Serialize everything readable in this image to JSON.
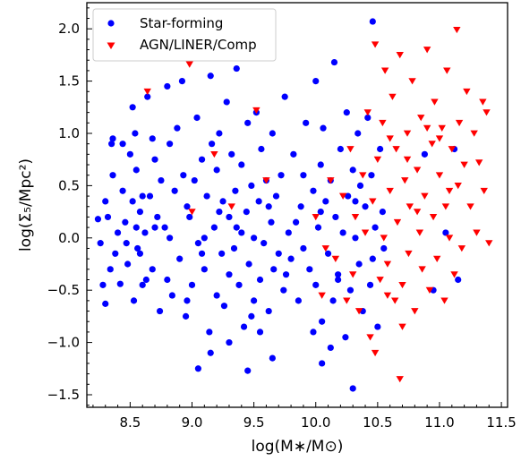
{
  "chart_data": {
    "type": "scatter",
    "xlabel": "log(M∗/M⊙)",
    "ylabel": "log(Σ₅/Mpc²)",
    "xlim": [
      8.15,
      11.55
    ],
    "ylim": [
      -1.62,
      2.25
    ],
    "xticks": [
      8.5,
      9.0,
      9.5,
      10.0,
      10.5,
      11.0,
      11.5
    ],
    "xtick_labels": [
      "8.5",
      "9.0",
      "9.5",
      "10.0",
      "10.5",
      "11.0",
      "11.5"
    ],
    "yticks": [
      -1.5,
      -1.0,
      -0.5,
      0.0,
      0.5,
      1.0,
      1.5,
      2.0
    ],
    "ytick_labels": [
      "−1.5",
      "−1.0",
      "−0.5",
      "0.0",
      "0.5",
      "1.0",
      "1.5",
      "2.0"
    ],
    "grid": false,
    "legend_position": "top-left",
    "colors": {
      "star_forming": "#0000ff",
      "agn": "#ff0000"
    },
    "series": [
      {
        "name": "Star-forming",
        "marker": "circle",
        "points": [
          [
            8.24,
            0.18
          ],
          [
            8.26,
            -0.05
          ],
          [
            8.28,
            -0.45
          ],
          [
            8.3,
            0.35
          ],
          [
            8.32,
            0.2
          ],
          [
            8.3,
            -0.63
          ],
          [
            8.34,
            -0.3
          ],
          [
            8.35,
            0.9
          ],
          [
            8.36,
            0.6
          ],
          [
            8.38,
            -0.15
          ],
          [
            8.4,
            0.05
          ],
          [
            8.42,
            -0.44
          ],
          [
            8.44,
            0.45
          ],
          [
            8.46,
            0.15
          ],
          [
            8.48,
            -0.25
          ],
          [
            8.5,
            0.8
          ],
          [
            8.52,
            0.35
          ],
          [
            8.53,
            -0.6
          ],
          [
            8.55,
            0.65
          ],
          [
            8.56,
            -0.1
          ],
          [
            8.58,
            0.25
          ],
          [
            8.6,
            -0.45
          ],
          [
            8.62,
            0.05
          ],
          [
            8.64,
            1.35
          ],
          [
            8.66,
            0.4
          ],
          [
            8.68,
            -0.3
          ],
          [
            8.7,
            0.75
          ],
          [
            8.72,
            0.2
          ],
          [
            8.74,
            -0.7
          ],
          [
            8.75,
            0.55
          ],
          [
            8.36,
            0.95
          ],
          [
            8.44,
            0.9
          ],
          [
            8.52,
            1.25
          ],
          [
            8.54,
            1.0
          ],
          [
            8.6,
            0.4
          ],
          [
            8.68,
            0.95
          ],
          [
            8.55,
            0.1
          ],
          [
            8.47,
            -0.05
          ],
          [
            8.63,
            -0.4
          ],
          [
            8.8,
            -0.4
          ],
          [
            8.78,
            0.1
          ],
          [
            8.8,
            1.45
          ],
          [
            8.82,
            0.0
          ],
          [
            8.84,
            -0.55
          ],
          [
            8.86,
            0.45
          ],
          [
            8.88,
            1.05
          ],
          [
            8.9,
            -0.2
          ],
          [
            8.92,
            1.5
          ],
          [
            8.93,
            0.6
          ],
          [
            8.95,
            -0.75
          ],
          [
            8.96,
            0.3
          ],
          [
            8.98,
            0.2
          ],
          [
            9.0,
            -0.45
          ],
          [
            9.02,
            0.55
          ],
          [
            9.04,
            1.15
          ],
          [
            9.05,
            -0.05
          ],
          [
            9.06,
            1.8
          ],
          [
            9.08,
            0.75
          ],
          [
            9.1,
            -0.3
          ],
          [
            9.1,
            0.0
          ],
          [
            9.12,
            0.4
          ],
          [
            9.14,
            -0.9
          ],
          [
            9.15,
            1.55
          ],
          [
            9.16,
            0.9
          ],
          [
            9.18,
            0.1
          ],
          [
            9.2,
            -0.55
          ],
          [
            9.2,
            0.65
          ],
          [
            9.22,
            1.0
          ],
          [
            9.24,
            -0.15
          ],
          [
            9.25,
            0.35
          ],
          [
            9.26,
            -0.65
          ],
          [
            9.28,
            1.3
          ],
          [
            9.3,
            0.2
          ],
          [
            9.3,
            -0.35
          ],
          [
            9.32,
            0.8
          ],
          [
            9.34,
            -0.1
          ],
          [
            9.35,
            0.45
          ],
          [
            9.36,
            1.62
          ],
          [
            9.38,
            -0.45
          ],
          [
            9.4,
            0.05
          ],
          [
            9.4,
            0.7
          ],
          [
            9.42,
            -0.85
          ],
          [
            9.44,
            0.25
          ],
          [
            9.45,
            1.1
          ],
          [
            9.46,
            -0.25
          ],
          [
            9.48,
            0.5
          ],
          [
            9.5,
            -0.6
          ],
          [
            9.5,
            0.0
          ],
          [
            9.52,
            1.2
          ],
          [
            9.54,
            0.35
          ],
          [
            9.55,
            -0.4
          ],
          [
            9.56,
            0.85
          ],
          [
            9.58,
            -0.05
          ],
          [
            9.6,
            0.55
          ],
          [
            9.62,
            -0.7
          ],
          [
            9.64,
            0.15
          ],
          [
            9.65,
            1.0
          ],
          [
            9.66,
            -0.3
          ],
          [
            9.68,
            0.4
          ],
          [
            9.7,
            -0.15
          ],
          [
            9.72,
            0.6
          ],
          [
            9.74,
            -0.5
          ],
          [
            9.75,
            1.35
          ],
          [
            9.78,
            0.05
          ],
          [
            9.8,
            -0.2
          ],
          [
            9.82,
            0.8
          ],
          [
            9.84,
            0.15
          ],
          [
            9.86,
            -0.6
          ],
          [
            9.88,
            0.3
          ],
          [
            9.9,
            -0.1
          ],
          [
            9.92,
            1.1
          ],
          [
            9.95,
            -0.3
          ],
          [
            9.98,
            0.45
          ],
          [
            10.0,
            1.5
          ],
          [
            10.0,
            -0.45
          ],
          [
            10.02,
            0.1
          ],
          [
            10.04,
            0.7
          ],
          [
            10.05,
            -0.8
          ],
          [
            10.06,
            1.05
          ],
          [
            10.08,
            0.35
          ],
          [
            10.1,
            -0.15
          ],
          [
            10.12,
            0.55
          ],
          [
            10.14,
            -0.6
          ],
          [
            10.15,
            1.68
          ],
          [
            10.16,
            0.2
          ],
          [
            10.18,
            -0.35
          ],
          [
            10.2,
            0.85
          ],
          [
            10.22,
            0.05
          ],
          [
            10.24,
            -0.95
          ],
          [
            10.25,
            1.2
          ],
          [
            10.26,
            0.4
          ],
          [
            10.28,
            -0.5
          ],
          [
            10.3,
            0.65
          ],
          [
            10.3,
            -1.44
          ],
          [
            10.32,
            0.0
          ],
          [
            10.34,
            1.0
          ],
          [
            10.35,
            -0.25
          ],
          [
            10.36,
            0.5
          ],
          [
            10.38,
            -0.7
          ],
          [
            10.4,
            0.3
          ],
          [
            10.42,
            1.15
          ],
          [
            10.44,
            -0.45
          ],
          [
            10.45,
            0.6
          ],
          [
            10.46,
            2.07
          ],
          [
            10.48,
            0.1
          ],
          [
            10.5,
            -0.85
          ],
          [
            10.52,
            0.85
          ],
          [
            10.54,
            0.25
          ],
          [
            10.55,
            -0.1
          ],
          [
            9.05,
            -1.25
          ],
          [
            9.15,
            -1.1
          ],
          [
            9.3,
            -1.0
          ],
          [
            9.45,
            -1.27
          ],
          [
            9.55,
            -0.9
          ],
          [
            9.65,
            -1.15
          ],
          [
            9.98,
            -0.9
          ],
          [
            10.05,
            -1.2
          ],
          [
            10.12,
            -1.05
          ],
          [
            8.58,
            -0.15
          ],
          [
            8.7,
            0.1
          ],
          [
            8.82,
            0.9
          ],
          [
            8.96,
            -0.6
          ],
          [
            9.08,
            -0.15
          ],
          [
            9.22,
            0.25
          ],
          [
            9.36,
            0.1
          ],
          [
            9.48,
            -0.75
          ],
          [
            9.62,
            0.3
          ],
          [
            9.76,
            -0.35
          ],
          [
            9.9,
            0.6
          ],
          [
            10.04,
            0.25
          ],
          [
            10.18,
            -0.4
          ],
          [
            10.32,
            0.35
          ],
          [
            10.46,
            -0.2
          ],
          [
            10.88,
            0.8
          ],
          [
            10.95,
            -0.5
          ],
          [
            11.05,
            0.05
          ],
          [
            11.15,
            -0.4
          ],
          [
            11.12,
            0.85
          ]
        ]
      },
      {
        "name": "AGN/LINER/Comp",
        "marker": "triangle-down",
        "points": [
          [
            8.64,
            1.4
          ],
          [
            8.98,
            1.66
          ],
          [
            9.52,
            1.22
          ],
          [
            9.18,
            0.8
          ],
          [
            9.6,
            0.55
          ],
          [
            9.0,
            0.25
          ],
          [
            9.32,
            0.3
          ],
          [
            10.12,
            0.55
          ],
          [
            10.08,
            -0.1
          ],
          [
            10.0,
            0.2
          ],
          [
            10.05,
            -0.55
          ],
          [
            10.16,
            -0.2
          ],
          [
            10.22,
            0.4
          ],
          [
            10.25,
            -0.6
          ],
          [
            10.28,
            0.85
          ],
          [
            10.3,
            -0.35
          ],
          [
            10.32,
            0.2
          ],
          [
            10.35,
            -0.7
          ],
          [
            10.38,
            0.6
          ],
          [
            10.4,
            0.05
          ],
          [
            10.42,
            1.2
          ],
          [
            10.44,
            -0.95
          ],
          [
            10.46,
            0.35
          ],
          [
            10.48,
            1.85
          ],
          [
            10.48,
            -1.1
          ],
          [
            10.5,
            0.75
          ],
          [
            10.52,
            -0.4
          ],
          [
            10.54,
            1.1
          ],
          [
            10.55,
            0.0
          ],
          [
            10.56,
            1.6
          ],
          [
            10.58,
            -0.25
          ],
          [
            10.6,
            0.45
          ],
          [
            10.62,
            1.35
          ],
          [
            10.64,
            -0.6
          ],
          [
            10.65,
            0.85
          ],
          [
            10.66,
            0.15
          ],
          [
            10.68,
            1.75
          ],
          [
            10.68,
            -1.35
          ],
          [
            10.7,
            -0.45
          ],
          [
            10.72,
            0.55
          ],
          [
            10.74,
            1.0
          ],
          [
            10.75,
            -0.15
          ],
          [
            10.76,
            0.3
          ],
          [
            10.78,
            1.5
          ],
          [
            10.8,
            -0.7
          ],
          [
            10.82,
            0.65
          ],
          [
            10.84,
            0.05
          ],
          [
            10.85,
            1.15
          ],
          [
            10.86,
            -0.3
          ],
          [
            10.88,
            0.4
          ],
          [
            10.9,
            1.8
          ],
          [
            10.92,
            -0.5
          ],
          [
            10.94,
            0.9
          ],
          [
            10.95,
            0.2
          ],
          [
            10.96,
            1.3
          ],
          [
            10.98,
            -0.2
          ],
          [
            11.0,
            0.6
          ],
          [
            11.02,
            1.05
          ],
          [
            11.04,
            -0.6
          ],
          [
            11.05,
            0.3
          ],
          [
            11.06,
            1.6
          ],
          [
            11.08,
            0.0
          ],
          [
            11.1,
            0.85
          ],
          [
            11.12,
            -0.35
          ],
          [
            11.14,
            1.99
          ],
          [
            11.15,
            0.5
          ],
          [
            11.16,
            1.1
          ],
          [
            11.18,
            -0.1
          ],
          [
            11.2,
            0.7
          ],
          [
            11.22,
            1.4
          ],
          [
            11.25,
            0.3
          ],
          [
            11.28,
            1.0
          ],
          [
            11.3,
            0.05
          ],
          [
            11.32,
            0.72
          ],
          [
            11.35,
            1.3
          ],
          [
            11.36,
            0.45
          ],
          [
            11.38,
            1.2
          ],
          [
            11.4,
            -0.05
          ],
          [
            10.58,
            -0.55
          ],
          [
            10.7,
            -0.85
          ],
          [
            10.82,
            0.25
          ],
          [
            10.9,
            1.05
          ],
          [
            11.0,
            0.95
          ],
          [
            11.08,
            0.45
          ],
          [
            10.6,
            0.95
          ],
          [
            10.74,
            0.75
          ]
        ]
      }
    ]
  }
}
